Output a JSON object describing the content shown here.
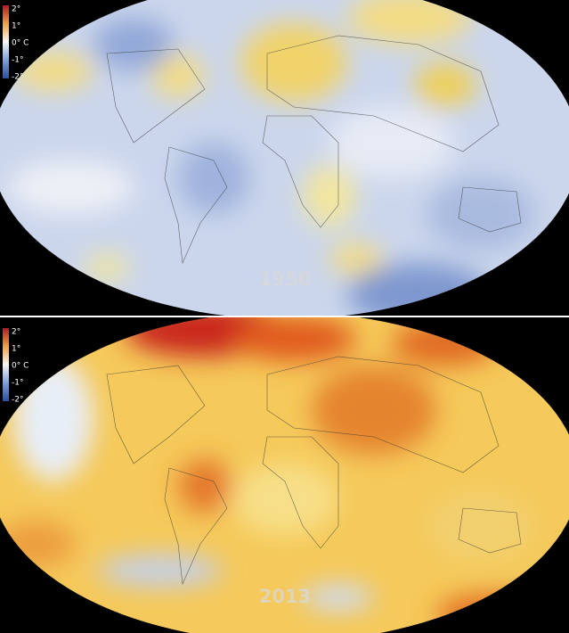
{
  "panels": [
    {
      "year": "1950",
      "legend": [
        "2°",
        "1°",
        "0° C",
        "-1°",
        "-2°"
      ]
    },
    {
      "year": "2013",
      "legend": [
        "2°",
        "1°",
        "0° C",
        "-1°",
        "-2°"
      ]
    }
  ]
}
